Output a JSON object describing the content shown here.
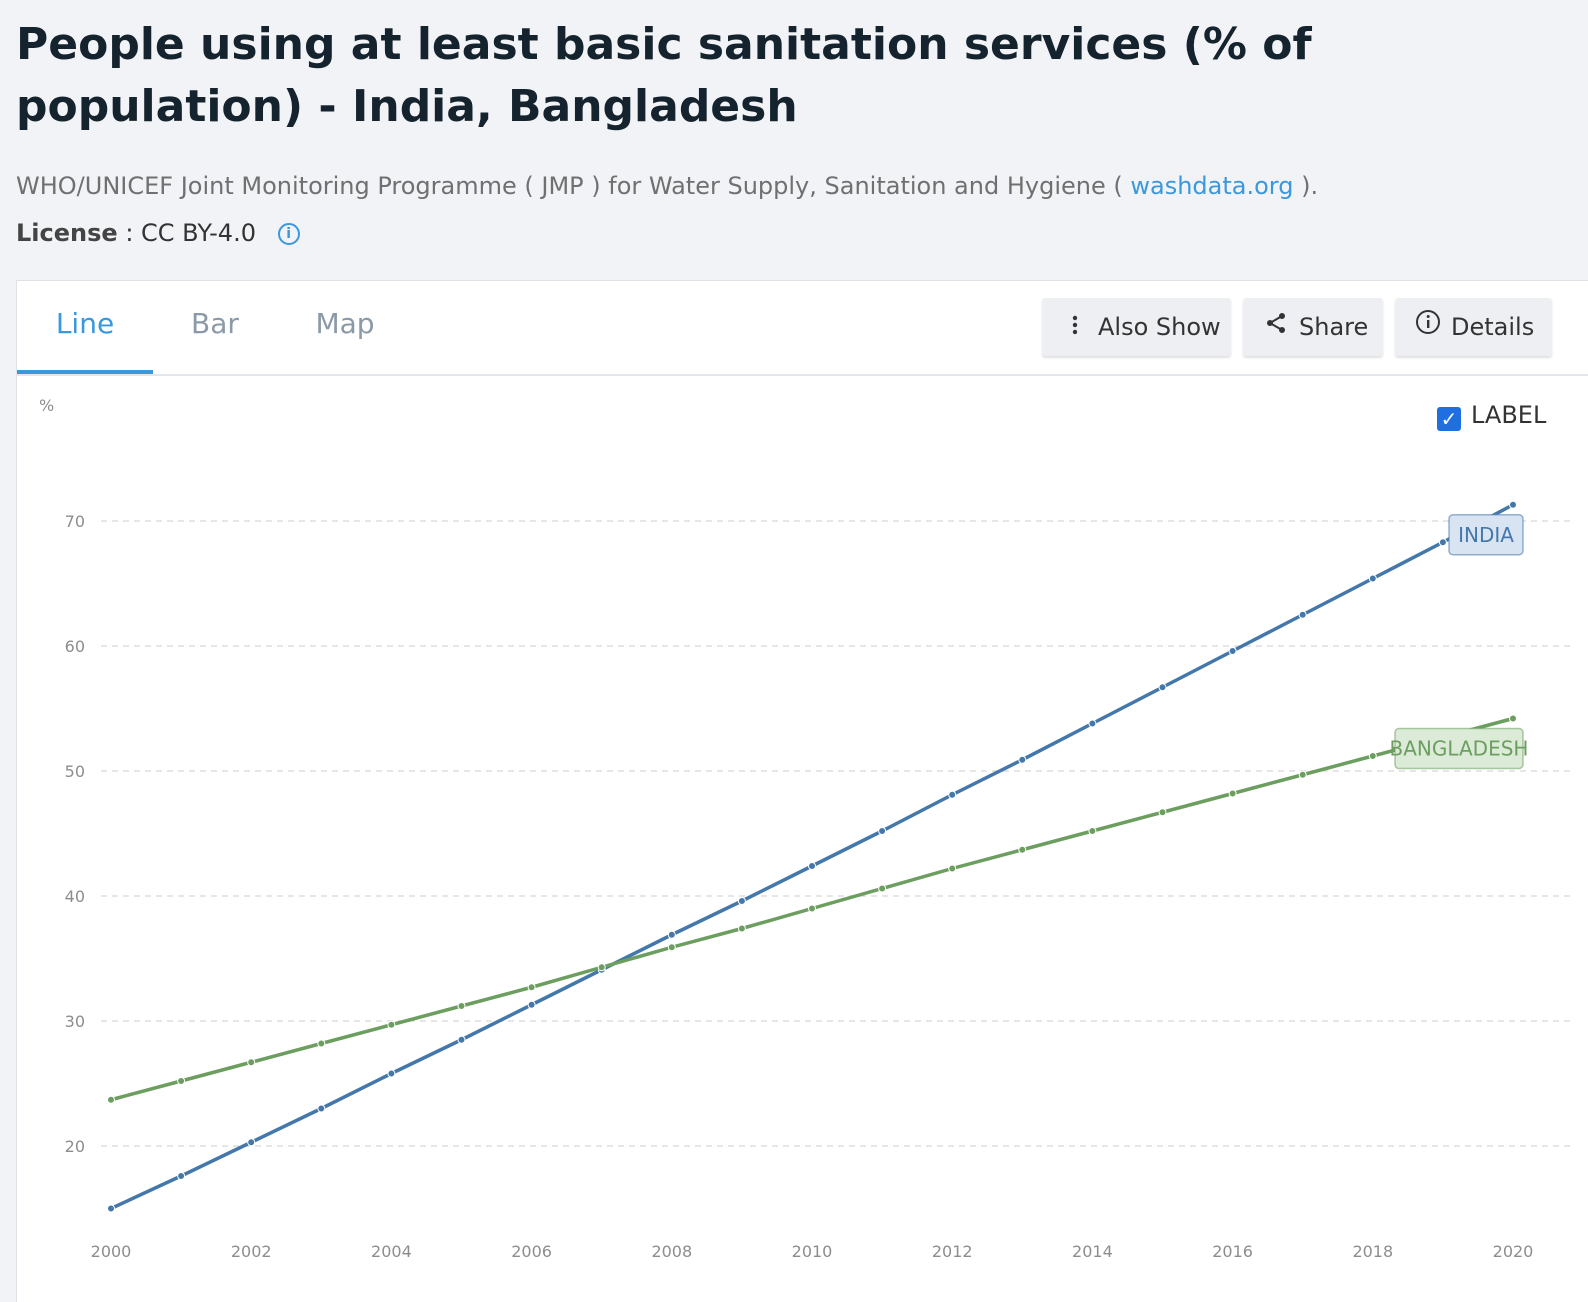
{
  "header": {
    "title": "People using at least basic sanitation services (% of population) - India, Bangladesh",
    "source_prefix": "WHO/UNICEF Joint Monitoring Programme ( JMP ) for Water Supply, Sanitation and Hygiene (",
    "source_link": "washdata.org",
    "source_suffix": ").",
    "license_label": "License",
    "license_value": ": CC BY-4.0"
  },
  "tabs": [
    {
      "label": "Line",
      "active": true
    },
    {
      "label": "Bar",
      "active": false
    },
    {
      "label": "Map",
      "active": false
    }
  ],
  "actions": {
    "also_show": "Also Show",
    "share": "Share",
    "details": "Details"
  },
  "label_toggle": {
    "label": "LABEL",
    "checked": true
  },
  "chart_data": {
    "type": "line",
    "ylabel": "%",
    "xlabel": "",
    "x": [
      2000,
      2001,
      2002,
      2003,
      2004,
      2005,
      2006,
      2007,
      2008,
      2009,
      2010,
      2011,
      2012,
      2013,
      2014,
      2015,
      2016,
      2017,
      2018,
      2019,
      2020
    ],
    "ylim": [
      13,
      75
    ],
    "yticks": [
      20,
      30,
      40,
      50,
      60,
      70
    ],
    "xticks": [
      2000,
      2002,
      2004,
      2006,
      2008,
      2010,
      2012,
      2014,
      2016,
      2018,
      2020
    ],
    "grid": true,
    "series": [
      {
        "name": "INDIA",
        "color": "#4477aa",
        "label_bg": "#d8e4f2",
        "values": [
          15.0,
          17.6,
          20.3,
          23.0,
          25.8,
          28.5,
          31.3,
          34.1,
          36.9,
          39.6,
          42.4,
          45.2,
          48.1,
          50.9,
          53.8,
          56.7,
          59.6,
          62.5,
          65.4,
          68.3,
          71.3
        ]
      },
      {
        "name": "BANGLADESH",
        "color": "#6b9e5f",
        "label_bg": "#dcebd8",
        "values": [
          23.7,
          25.2,
          26.7,
          28.2,
          29.7,
          31.2,
          32.7,
          34.3,
          35.9,
          37.4,
          39.0,
          40.6,
          42.2,
          43.7,
          45.2,
          46.7,
          48.2,
          49.7,
          51.2,
          52.7,
          54.2
        ]
      }
    ]
  }
}
